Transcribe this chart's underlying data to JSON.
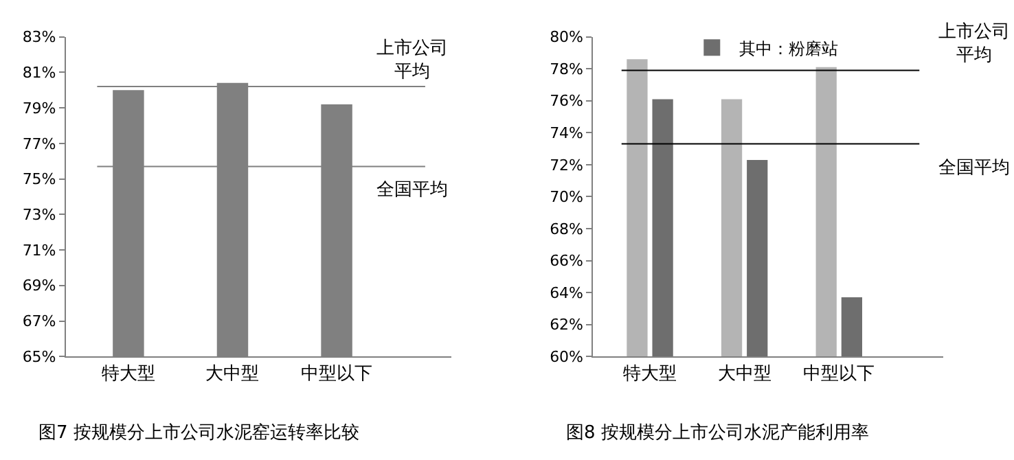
{
  "chart_data": [
    {
      "type": "bar",
      "categories": [
        "特大型",
        "大中型",
        "中型以下"
      ],
      "series": [
        {
          "color": "#808080",
          "values": [
            80.0,
            80.4,
            79.2
          ]
        }
      ],
      "ylim": [
        65,
        83
      ],
      "yticks": [
        {
          "value": 65,
          "label": "65%"
        },
        {
          "value": 67,
          "label": "67%"
        },
        {
          "value": 69,
          "label": "69%"
        },
        {
          "value": 71,
          "label": "71%"
        },
        {
          "value": 73,
          "label": "73%"
        },
        {
          "value": 75,
          "label": "75%"
        },
        {
          "value": 77,
          "label": "77%"
        },
        {
          "value": 79,
          "label": "79%"
        },
        {
          "value": 81,
          "label": "81%"
        },
        {
          "value": 83,
          "label": "83%"
        }
      ],
      "ref_lines": [
        {
          "axis": "y",
          "value": 80.2,
          "label": "上市公司平均",
          "color": "#808080"
        },
        {
          "axis": "y",
          "value": 75.7,
          "label": "全国平均",
          "color": "#808080"
        }
      ],
      "annotations": [
        "图7 按规模分上市公司水泥窑运转率比较"
      ]
    },
    {
      "type": "bar",
      "categories": [
        "特大型",
        "大中型",
        "中型以下"
      ],
      "series": [
        {
          "color": "#b4b4b4",
          "values": [
            78.6,
            76.1,
            78.1
          ]
        },
        {
          "name": "其中：粉磨站",
          "color": "#6e6e6e",
          "values": [
            76.1,
            72.3,
            63.7
          ]
        }
      ],
      "ylim": [
        60,
        80
      ],
      "yticks": [
        {
          "value": 60,
          "label": "60%"
        },
        {
          "value": 62,
          "label": "62%"
        },
        {
          "value": 64,
          "label": "64%"
        },
        {
          "value": 66,
          "label": "66%"
        },
        {
          "value": 68,
          "label": "68%"
        },
        {
          "value": 70,
          "label": "70%"
        },
        {
          "value": 72,
          "label": "72%"
        },
        {
          "value": 74,
          "label": "74%"
        },
        {
          "value": 76,
          "label": "76%"
        },
        {
          "value": 78,
          "label": "78%"
        },
        {
          "value": 80,
          "label": "80%"
        }
      ],
      "ref_lines": [
        {
          "axis": "y",
          "value": 77.9,
          "label": "上市公司平均",
          "color": "#000000"
        },
        {
          "axis": "y",
          "value": 73.3,
          "label": "全国平均",
          "color": "#000000"
        }
      ],
      "legend": "top",
      "annotations": [
        "图8 按规模分上市公司水泥产能利用率"
      ]
    }
  ]
}
